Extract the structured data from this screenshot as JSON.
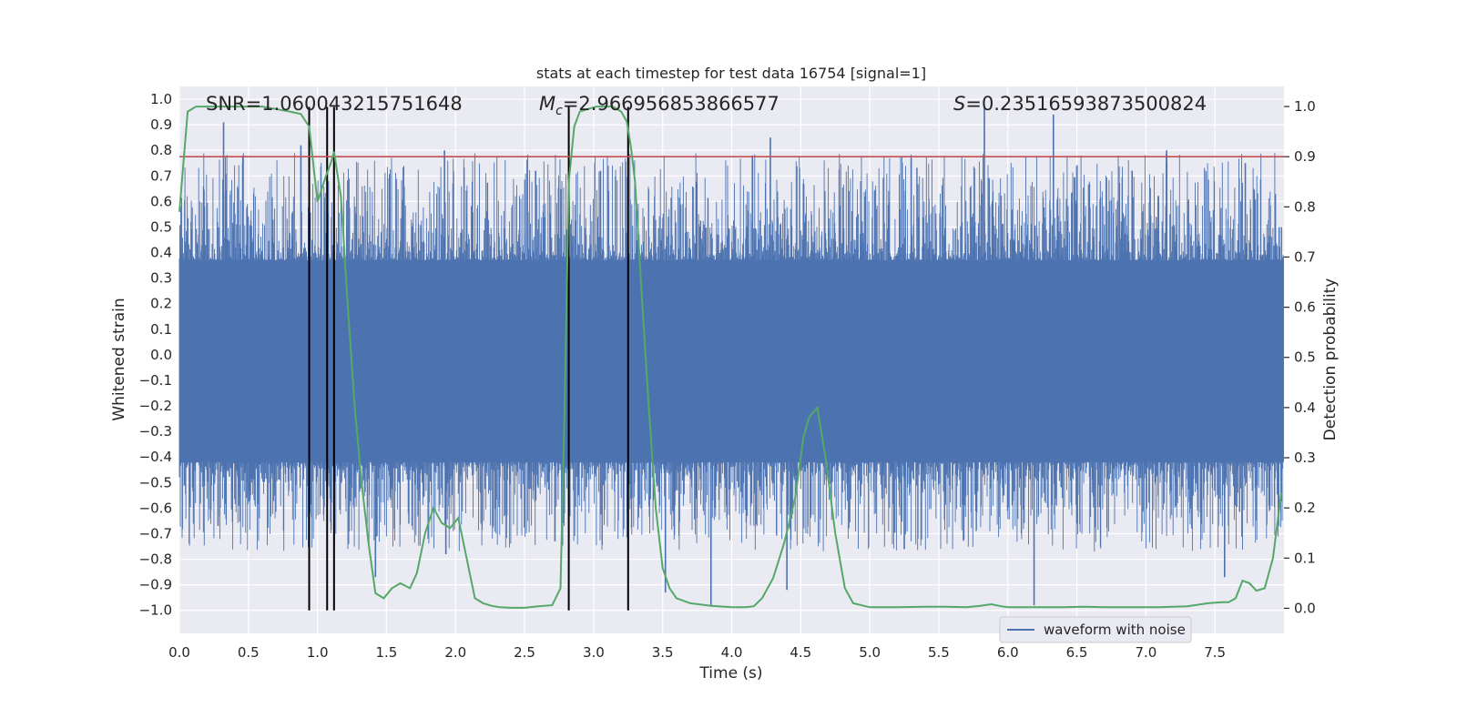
{
  "chart_data": {
    "type": "line",
    "title": "stats at each timestep for test data 16754 [signal=1]",
    "xlabel": "Time (s)",
    "ylabel_left": "Whitened strain",
    "ylabel_right": "Detection probability",
    "xlim": [
      0.0,
      8.0
    ],
    "ylim_left": [
      -1.09,
      1.05
    ],
    "ylim_right": [
      -0.05,
      1.04
    ],
    "x_ticks": [
      0.0,
      0.5,
      1.0,
      1.5,
      2.0,
      2.5,
      3.0,
      3.5,
      4.0,
      4.5,
      5.0,
      5.5,
      6.0,
      6.5,
      7.0,
      7.5
    ],
    "x_tick_labels": [
      "0.0",
      "0.5",
      "1.0",
      "1.5",
      "2.0",
      "2.5",
      "3.0",
      "3.5",
      "4.0",
      "4.5",
      "5.0",
      "5.5",
      "6.0",
      "6.5",
      "7.0",
      "7.5"
    ],
    "y_left_ticks": [
      1.0,
      0.9,
      0.8,
      0.7,
      0.6,
      0.5,
      0.4,
      0.3,
      0.2,
      0.1,
      0.0,
      -0.1,
      -0.2,
      -0.3,
      -0.4,
      -0.5,
      -0.6,
      -0.7,
      -0.8,
      -0.9,
      -1.0
    ],
    "y_left_tick_labels": [
      "1.0",
      "0.9",
      "0.8",
      "0.7",
      "0.6",
      "0.5",
      "0.4",
      "0.3",
      "0.2",
      "0.1",
      "0.0",
      "−0.1",
      "−0.2",
      "−0.3",
      "−0.4",
      "−0.5",
      "−0.6",
      "−0.7",
      "−0.8",
      "−0.9",
      "−1.0"
    ],
    "y_right_ticks": [
      1.0,
      0.9,
      0.8,
      0.7,
      0.6,
      0.5,
      0.4,
      0.3,
      0.2,
      0.1,
      0.0
    ],
    "y_right_tick_labels": [
      "1.0",
      "0.9",
      "0.8",
      "0.7",
      "0.6",
      "0.5",
      "0.4",
      "0.3",
      "0.2",
      "0.1",
      "0.0"
    ],
    "annotations": {
      "snr": "SNR=1.060043215751648",
      "mc_symbol": "M",
      "mc_sub": "c",
      "mc_value": "=2.966956853866577",
      "s_symbol": "S",
      "s_value": "=0.23516593873500824"
    },
    "legend": {
      "label": "waveform with noise",
      "position": "lower-right"
    },
    "threshold": {
      "axis": "right",
      "value": 0.9,
      "color": "#c44e52"
    },
    "vertical_markers": {
      "x": [
        0.94,
        1.07,
        1.12,
        2.82,
        3.25
      ],
      "y_range_left": [
        -1.0,
        0.97
      ]
    },
    "series": [
      {
        "name": "waveform with noise",
        "axis": "left",
        "color": "#4c72b0",
        "style": "dense noisy strain",
        "core_band": [
          -0.42,
          0.37
        ],
        "peaks_up": [
          [
            0.32,
            0.91
          ],
          [
            0.46,
            0.78
          ],
          [
            0.88,
            0.82
          ],
          [
            1.92,
            0.8
          ],
          [
            2.58,
            0.72
          ],
          [
            3.05,
            0.72
          ],
          [
            4.15,
            0.78
          ],
          [
            4.28,
            0.85
          ],
          [
            4.52,
            0.67
          ],
          [
            5.3,
            0.77
          ],
          [
            5.83,
            0.97
          ],
          [
            6.33,
            0.94
          ],
          [
            6.9,
            0.72
          ],
          [
            7.15,
            0.8
          ],
          [
            7.72,
            0.75
          ]
        ],
        "peaks_down": [
          [
            0.28,
            -0.67
          ],
          [
            1.42,
            -0.87
          ],
          [
            1.93,
            -0.78
          ],
          [
            2.72,
            -0.73
          ],
          [
            3.52,
            -0.93
          ],
          [
            3.85,
            -0.98
          ],
          [
            4.4,
            -0.92
          ],
          [
            5.25,
            -0.76
          ],
          [
            6.19,
            -0.98
          ],
          [
            7.57,
            -0.87
          ],
          [
            7.96,
            -0.62
          ]
        ]
      },
      {
        "name": "detection probability",
        "axis": "right",
        "color": "#55a868",
        "x": [
          0.0,
          0.06,
          0.12,
          0.2,
          0.3,
          0.4,
          0.5,
          0.6,
          0.7,
          0.8,
          0.88,
          0.94,
          1.0,
          1.06,
          1.1,
          1.12,
          1.17,
          1.22,
          1.27,
          1.32,
          1.37,
          1.42,
          1.48,
          1.54,
          1.6,
          1.67,
          1.72,
          1.78,
          1.84,
          1.9,
          1.96,
          2.02,
          2.08,
          2.14,
          2.2,
          2.26,
          2.32,
          2.4,
          2.5,
          2.6,
          2.7,
          2.76,
          2.79,
          2.82,
          2.86,
          2.9,
          2.96,
          3.02,
          3.08,
          3.14,
          3.2,
          3.24,
          3.27,
          3.3,
          3.35,
          3.4,
          3.45,
          3.5,
          3.55,
          3.6,
          3.7,
          3.85,
          4.0,
          4.1,
          4.16,
          4.22,
          4.3,
          4.38,
          4.46,
          4.52,
          4.56,
          4.62,
          4.68,
          4.75,
          4.82,
          4.88,
          5.0,
          5.2,
          5.4,
          5.55,
          5.7,
          5.8,
          5.88,
          5.95,
          6.0,
          6.2,
          6.4,
          6.55,
          6.7,
          6.9,
          7.1,
          7.3,
          7.45,
          7.55,
          7.6,
          7.65,
          7.7,
          7.75,
          7.8,
          7.86,
          7.92,
          7.98
        ],
        "values": [
          0.79,
          0.99,
          1.0,
          1.0,
          1.0,
          1.0,
          1.0,
          1.0,
          0.995,
          0.99,
          0.985,
          0.96,
          0.81,
          0.86,
          0.89,
          0.91,
          0.82,
          0.6,
          0.4,
          0.25,
          0.13,
          0.03,
          0.02,
          0.04,
          0.05,
          0.04,
          0.07,
          0.15,
          0.2,
          0.17,
          0.16,
          0.18,
          0.1,
          0.02,
          0.01,
          0.005,
          0.002,
          0.001,
          0.001,
          0.004,
          0.006,
          0.04,
          0.4,
          0.85,
          0.96,
          0.99,
          0.995,
          1.0,
          1.0,
          1.0,
          0.99,
          0.97,
          0.92,
          0.85,
          0.62,
          0.4,
          0.2,
          0.08,
          0.04,
          0.02,
          0.01,
          0.005,
          0.002,
          0.002,
          0.004,
          0.02,
          0.06,
          0.13,
          0.22,
          0.34,
          0.38,
          0.4,
          0.3,
          0.15,
          0.04,
          0.01,
          0.002,
          0.002,
          0.003,
          0.003,
          0.002,
          0.005,
          0.008,
          0.004,
          0.002,
          0.002,
          0.002,
          0.003,
          0.002,
          0.002,
          0.002,
          0.004,
          0.01,
          0.012,
          0.012,
          0.02,
          0.055,
          0.05,
          0.035,
          0.04,
          0.1,
          0.23
        ]
      }
    ]
  }
}
